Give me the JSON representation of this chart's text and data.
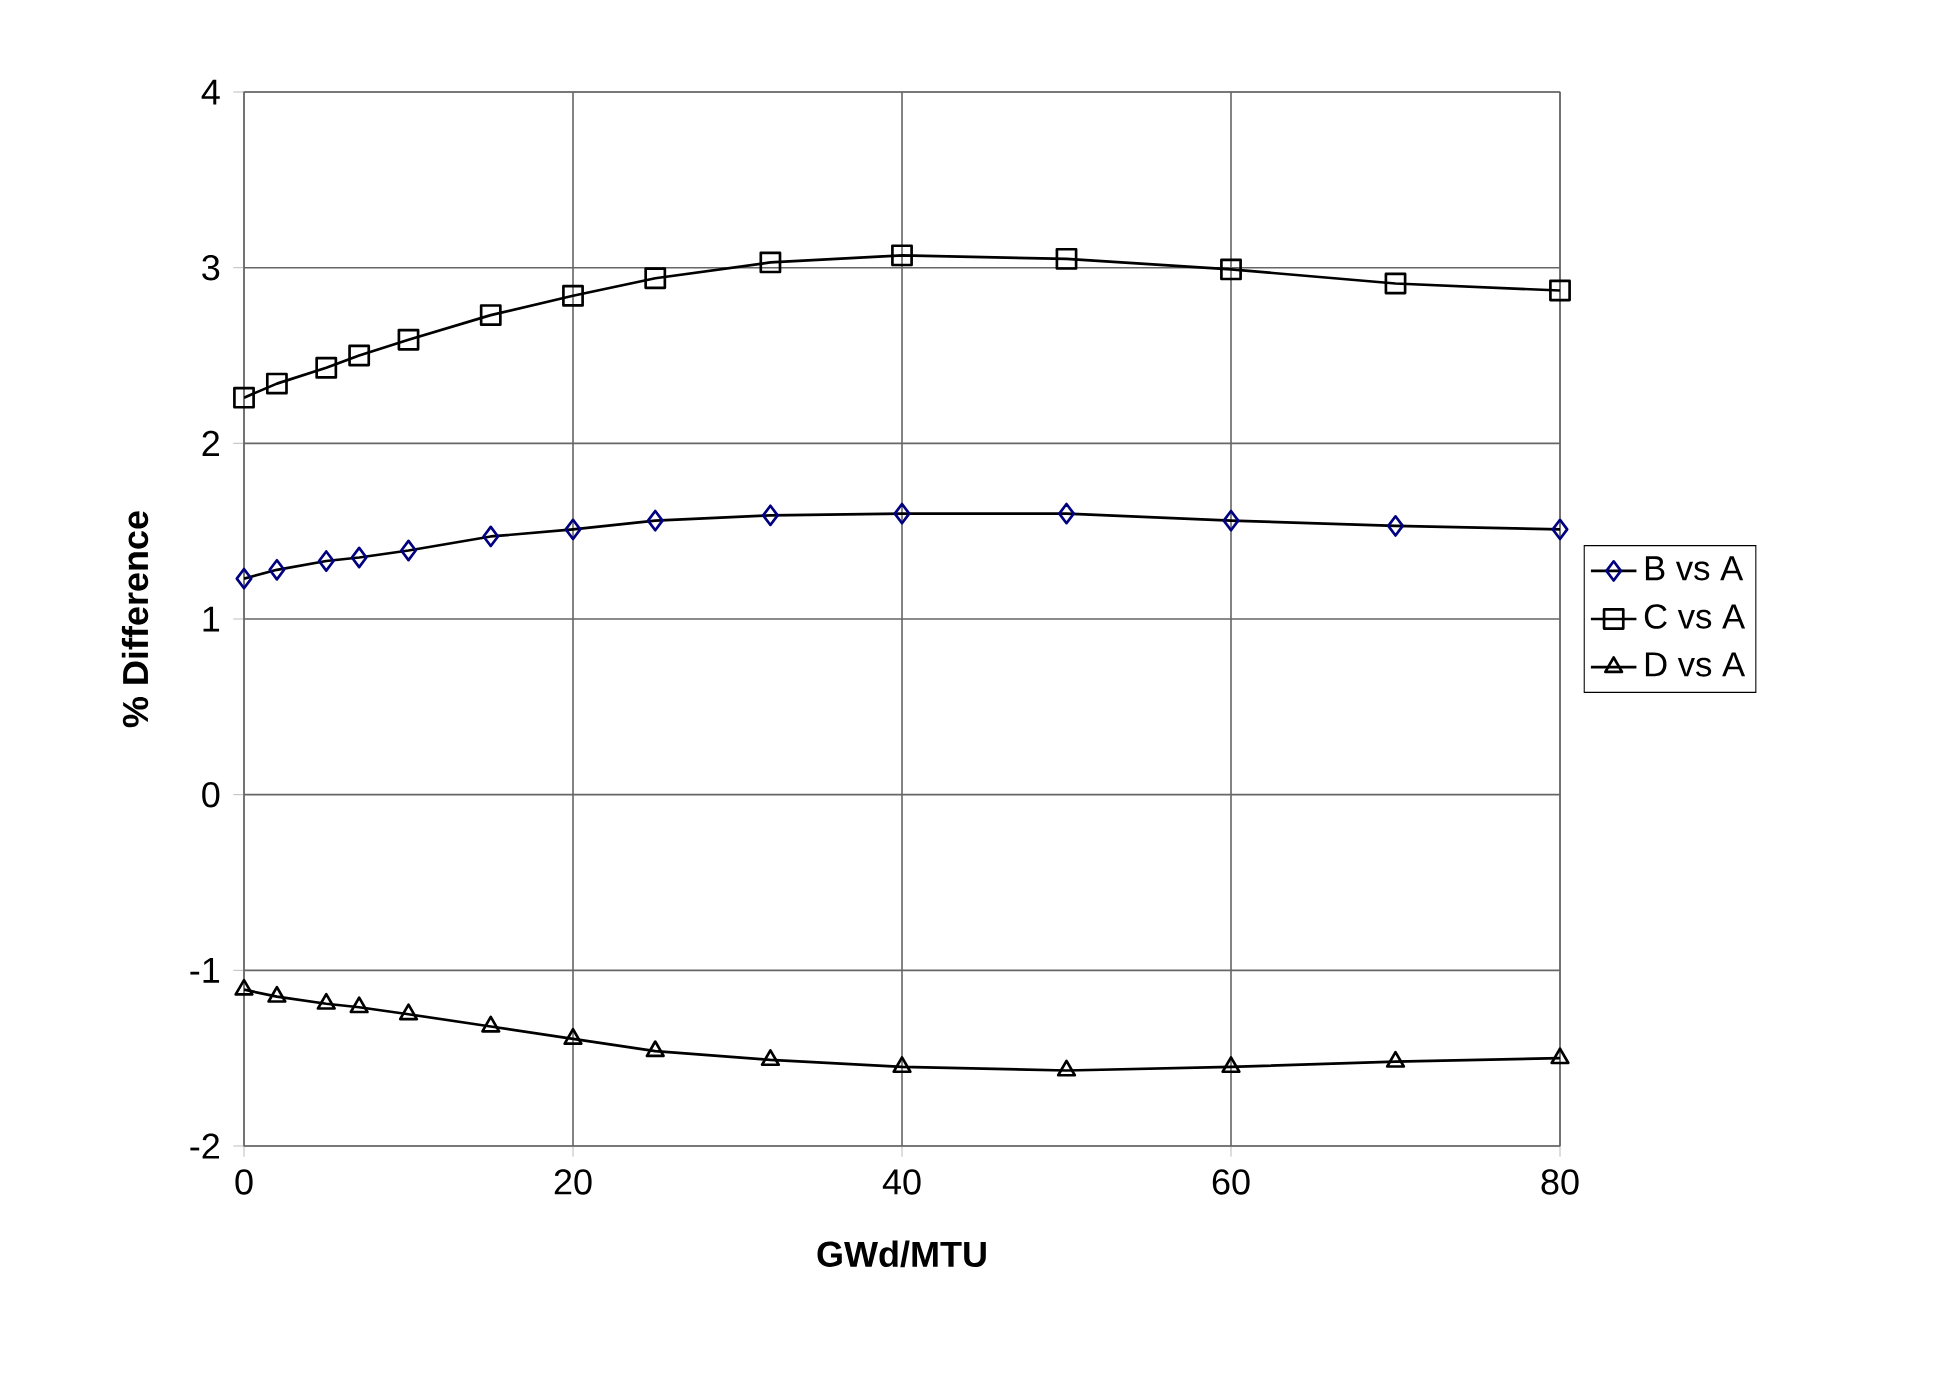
{
  "chart_data": {
    "type": "line",
    "xlabel": "GWd/MTU",
    "ylabel": "% Difference",
    "x": [
      0,
      2,
      5,
      7,
      10,
      15,
      20,
      25,
      32,
      40,
      50,
      60,
      70,
      80
    ],
    "series": [
      {
        "name": "B vs A",
        "color": "#000080",
        "marker": "diamond",
        "values": [
          1.23,
          1.28,
          1.33,
          1.35,
          1.39,
          1.47,
          1.51,
          1.56,
          1.59,
          1.6,
          1.6,
          1.56,
          1.53,
          1.51
        ]
      },
      {
        "name": "C vs A",
        "color": "#000000",
        "marker": "square",
        "values": [
          2.26,
          2.34,
          2.43,
          2.5,
          2.59,
          2.73,
          2.84,
          2.94,
          3.03,
          3.07,
          3.05,
          2.99,
          2.91,
          2.87
        ]
      },
      {
        "name": "D vs A",
        "color": "#000000",
        "marker": "triangle",
        "values": [
          -1.11,
          -1.15,
          -1.19,
          -1.21,
          -1.25,
          -1.32,
          -1.39,
          -1.46,
          -1.51,
          -1.55,
          -1.57,
          -1.55,
          -1.52,
          -1.5
        ]
      }
    ],
    "xlim": [
      0,
      80
    ],
    "xticks": [
      0,
      20,
      40,
      60,
      80
    ],
    "ylim": [
      -2,
      4
    ],
    "yticks": [
      -2,
      -1,
      0,
      1,
      2,
      3,
      4
    ],
    "grid": true,
    "legend": "right",
    "line_style": "solid"
  }
}
